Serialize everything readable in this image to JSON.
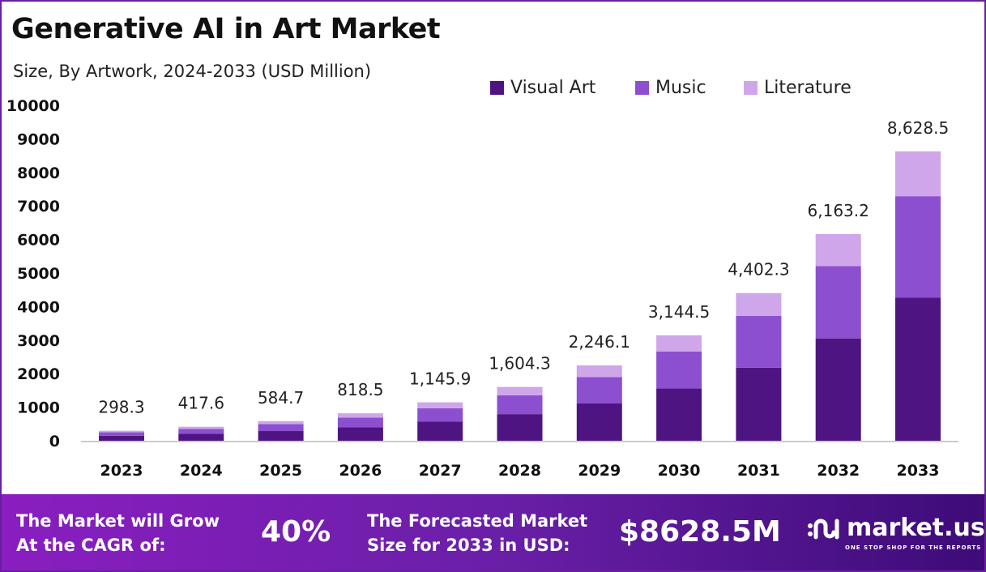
{
  "header": {
    "title": "Generative AI in Art Market",
    "subtitle": "Size, By Artwork, 2024-2033 (USD Million)"
  },
  "chart_data": {
    "type": "stacked-bar",
    "title": "Generative AI in Art Market",
    "subtitle": "Size, By Artwork, 2024-2033 (USD Million)",
    "categories": [
      "2023",
      "2024",
      "2025",
      "2026",
      "2027",
      "2028",
      "2029",
      "2030",
      "2031",
      "2032",
      "2033"
    ],
    "series": [
      {
        "name": "Visual Art",
        "color": "#4e1582",
        "values": [
          147.7,
          206.7,
          289.4,
          405.2,
          567.2,
          794.1,
          1111.8,
          1556.5,
          2179.1,
          3050.8,
          4271.1
        ]
      },
      {
        "name": "Music",
        "color": "#8c4fcf",
        "values": [
          104.4,
          146.2,
          204.6,
          286.5,
          401.1,
          561.5,
          786.1,
          1100.6,
          1540.8,
          2157.1,
          3020.0
        ]
      },
      {
        "name": "Literature",
        "color": "#cfa6ea",
        "values": [
          46.2,
          64.7,
          90.7,
          126.8,
          177.6,
          248.7,
          348.2,
          487.4,
          682.4,
          955.3,
          1337.4
        ]
      }
    ],
    "totals": [
      "298.3",
      "417.6",
      "584.7",
      "818.5",
      "1,145.9",
      "1,604.3",
      "2,246.1",
      "3,144.5",
      "4,402.3",
      "6,163.2",
      "8,628.5"
    ],
    "ylim": [
      0,
      10000
    ],
    "yticks": [
      "0",
      "1000",
      "2000",
      "3000",
      "4000",
      "5000",
      "6000",
      "7000",
      "8000",
      "9000",
      "10000"
    ],
    "grid": false,
    "legend_position": "top-right"
  },
  "footer": {
    "cagr_label": "The Market will Grow At the CAGR of:",
    "cagr_value": "40%",
    "forecast_label": "The Forecasted Market Size for 2033 in USD:",
    "forecast_value": "$8628.5M",
    "brand": "market.us",
    "tagline": "ONE STOP SHOP FOR THE REPORTS"
  }
}
